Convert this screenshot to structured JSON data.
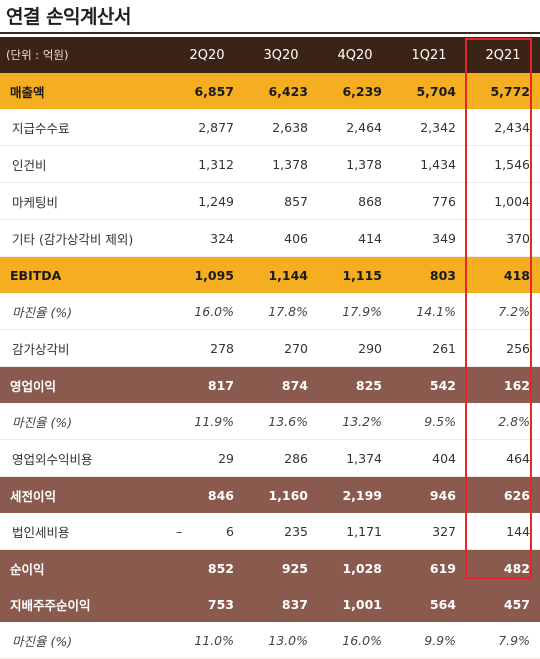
{
  "title": "연결 손익계산서",
  "header": {
    "unit_label": "(단위 : 억원)",
    "periods": [
      "2Q20",
      "3Q20",
      "4Q20",
      "1Q21",
      "2Q21"
    ]
  },
  "rows": [
    {
      "label": "매출액",
      "style": "gold",
      "values": [
        "6,857",
        "6,423",
        "6,239",
        "5,704",
        "5,772"
      ]
    },
    {
      "label": "지급수수료",
      "style": "plain",
      "values": [
        "2,877",
        "2,638",
        "2,464",
        "2,342",
        "2,434"
      ]
    },
    {
      "label": "인건비",
      "style": "plain",
      "values": [
        "1,312",
        "1,378",
        "1,378",
        "1,434",
        "1,546"
      ]
    },
    {
      "label": "마케팅비",
      "style": "plain",
      "values": [
        "1,249",
        "857",
        "868",
        "776",
        "1,004"
      ]
    },
    {
      "label": "기타 (감가상각비 제외)",
      "style": "plain",
      "values": [
        "324",
        "406",
        "414",
        "349",
        "370"
      ]
    },
    {
      "label": "EBITDA",
      "style": "gold",
      "values": [
        "1,095",
        "1,144",
        "1,115",
        "803",
        "418"
      ]
    },
    {
      "label": "마진율 (%)",
      "style": "margin",
      "values": [
        "16.0%",
        "17.8%",
        "17.9%",
        "14.1%",
        "7.2%"
      ]
    },
    {
      "label": "감가상각비",
      "style": "plain",
      "values": [
        "278",
        "270",
        "290",
        "261",
        "256"
      ]
    },
    {
      "label": "영업이익",
      "style": "brown",
      "values": [
        "817",
        "874",
        "825",
        "542",
        "162"
      ]
    },
    {
      "label": "마진율 (%)",
      "style": "margin",
      "values": [
        "11.9%",
        "13.6%",
        "13.2%",
        "9.5%",
        "2.8%"
      ]
    },
    {
      "label": "영업외수익비용",
      "style": "plain",
      "values": [
        "29",
        "286",
        "1,374",
        "404",
        "464"
      ]
    },
    {
      "label": "세전이익",
      "style": "brown",
      "values": [
        "846",
        "1,160",
        "2,199",
        "946",
        "626"
      ]
    },
    {
      "label": "법인세비용",
      "style": "plain",
      "prefix": "–",
      "values": [
        "6",
        "235",
        "1,171",
        "327",
        "144"
      ]
    },
    {
      "label": "순이익",
      "style": "brown",
      "values": [
        "852",
        "925",
        "1,028",
        "619",
        "482"
      ]
    },
    {
      "label": "지배주주순이익",
      "style": "brown",
      "values": [
        "753",
        "837",
        "1,001",
        "564",
        "457"
      ]
    },
    {
      "label": "마진율 (%)",
      "style": "margin",
      "values": [
        "11.0%",
        "13.0%",
        "16.0%",
        "9.9%",
        "7.9%"
      ]
    }
  ],
  "colors": {
    "header_bg": "#3b2416",
    "gold_row": "#f5ae1f",
    "brown_row": "#8b5a4f",
    "highlight_border": "#e8262a"
  }
}
